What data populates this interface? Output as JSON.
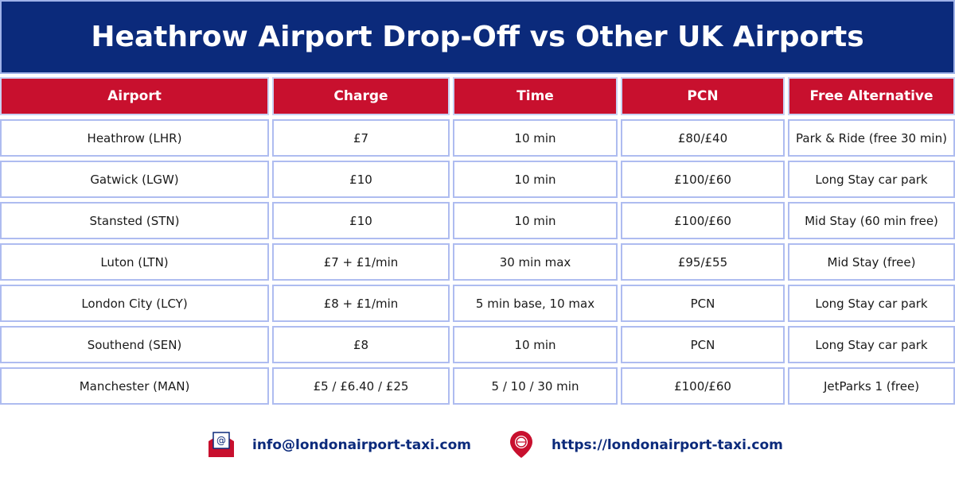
{
  "header": {
    "title": "Heathrow Airport Drop-Off vs Other UK Airports"
  },
  "table": {
    "columns": [
      "Airport",
      "Charge",
      "Time",
      "PCN",
      "Free Alternative"
    ],
    "rows": [
      [
        "Heathrow (LHR)",
        "£7",
        "10 min",
        "£80/£40",
        "Park & Ride (free 30 min)"
      ],
      [
        "Gatwick (LGW)",
        "£10",
        "10 min",
        "£100/£60",
        "Long Stay car park"
      ],
      [
        "Stansted (STN)",
        "£10",
        "10 min",
        "£100/£60",
        "Mid Stay (60 min free)"
      ],
      [
        "Luton (LTN)",
        "£7 + £1/min",
        "30 min max",
        "£95/£55",
        "Mid Stay (free)"
      ],
      [
        "London City (LCY)",
        "£8 + £1/min",
        "5 min base, 10 max",
        "PCN",
        "Long Stay car park"
      ],
      [
        "Southend (SEN)",
        "£8",
        "10 min",
        "PCN",
        "Long Stay car park"
      ],
      [
        "Manchester (MAN)",
        "£5 / £6.40 / £25",
        "5 / 10 / 30 min",
        "£100/£60",
        "JetParks 1 (free)"
      ]
    ]
  },
  "footer": {
    "email": "info@londonairport-taxi.com",
    "website": "https://londonairport-taxi.com"
  }
}
